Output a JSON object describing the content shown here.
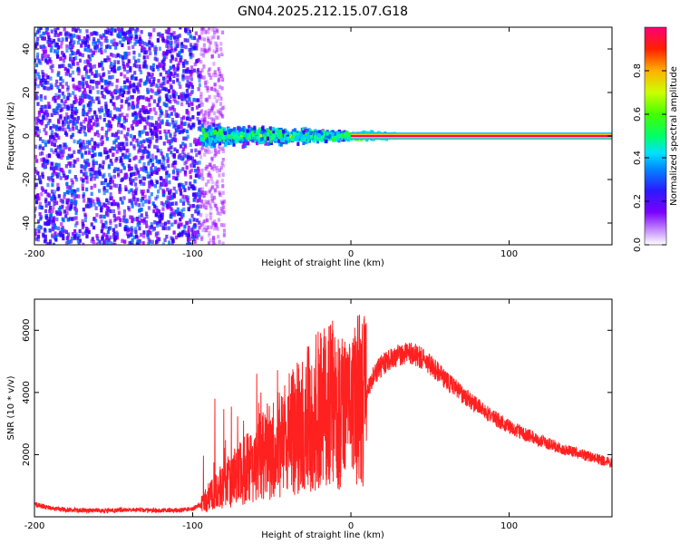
{
  "title": "GN04.2025.212.15.07.G18",
  "chart_data": [
    {
      "type": "heatmap",
      "xlabel": "Height of straight line (km)",
      "ylabel": "Frequency (Hz)",
      "xlim": [
        -200,
        165
      ],
      "ylim": [
        -50,
        50
      ],
      "xticks": [
        "-200",
        "-100",
        "0",
        "100"
      ],
      "yticks": [
        "-40",
        "-20",
        "0",
        "20",
        "40"
      ],
      "colorbar": {
        "label": "Normalized spectral amplitude",
        "range": [
          0,
          1
        ],
        "ticks": [
          "0.0",
          "0.2",
          "0.4",
          "0.6",
          "0.8"
        ],
        "colormap": [
          "#ffffff",
          "#9900ff",
          "#3300ff",
          "#0066ff",
          "#00ccff",
          "#00ff99",
          "#33ff00",
          "#ccff00",
          "#ffcc00",
          "#ff6600",
          "#ff0000",
          "#ff0066"
        ]
      },
      "features": [
        {
          "region": "x -200 to -95",
          "frequency_range": [
            -50,
            50
          ],
          "amplitude": 0.2
        },
        {
          "region": "x -95 to -80",
          "frequency_range": [
            -50,
            50
          ],
          "amplitude": 0.08
        },
        {
          "region": "x -95 to 30",
          "frequency_range": [
            -8,
            8
          ],
          "amplitude": 0.45
        },
        {
          "region": "x 0 to 165",
          "frequency": 0,
          "amplitude": 1.0
        }
      ]
    },
    {
      "type": "line",
      "xlabel": "Height of straight line (km)",
      "ylabel": "SNR (10 * v/v)",
      "xlim": [
        -200,
        165
      ],
      "ylim": [
        0,
        7000
      ],
      "xticks": [
        "-200",
        "-100",
        "0",
        "100"
      ],
      "yticks": [
        "2000",
        "4000",
        "6000"
      ],
      "color": "#ff2020",
      "series": [
        {
          "x": [
            -200,
            -190,
            -180,
            -170,
            -160,
            -150,
            -140,
            -130,
            -120,
            -110,
            -100,
            -95,
            -90,
            -85,
            -80,
            -75,
            -70,
            -65,
            -60,
            -55,
            -50,
            -45,
            -40,
            -35,
            -30,
            -25,
            -20,
            -15,
            -10,
            -5,
            0,
            5,
            10,
            15,
            20,
            25,
            30,
            35,
            40,
            45,
            50,
            55,
            60,
            70,
            80,
            90,
            100,
            110,
            120,
            130,
            140,
            150,
            160,
            165
          ],
          "y": [
            400,
            280,
            220,
            210,
            200,
            200,
            240,
            210,
            200,
            210,
            260,
            400,
            620,
            850,
            1050,
            1200,
            1400,
            1600,
            1800,
            2000,
            2200,
            2400,
            2600,
            2800,
            3000,
            3200,
            3500,
            3700,
            3600,
            3300,
            3200,
            3800,
            4000,
            4600,
            4900,
            5100,
            5200,
            5300,
            5250,
            5100,
            4900,
            4650,
            4400,
            3950,
            3550,
            3200,
            2900,
            2650,
            2450,
            2250,
            2100,
            1950,
            1800,
            1750
          ]
        }
      ]
    }
  ]
}
